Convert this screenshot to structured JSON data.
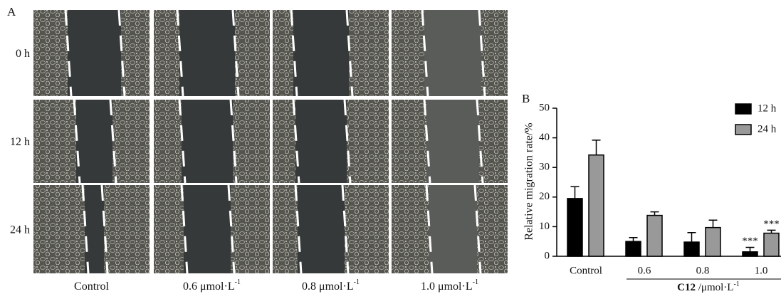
{
  "panel_a": {
    "label": "A",
    "row_labels": [
      "0 h",
      "12 h",
      "24 h"
    ],
    "column_labels": [
      {
        "text": "Control"
      },
      {
        "text": "0.6 μmol·L",
        "sup": "-1"
      },
      {
        "text": "0.8 μmol·L",
        "sup": "-1"
      },
      {
        "text": "1.0 μmol·L",
        "sup": "-1"
      }
    ]
  },
  "chart_data": {
    "type": "bar",
    "panel_label": "B",
    "ylabel": "Relative migration rate/%",
    "xlabel": {
      "bold": "C12",
      "text": " /μmol·L",
      "sup": "-1"
    },
    "categories": [
      "Control",
      "0.6",
      "0.8",
      "1.0"
    ],
    "series": [
      {
        "name": "12 h",
        "color": "#000000",
        "values": [
          19.5,
          5,
          4.8,
          1.5
        ],
        "errors": [
          4,
          1.3,
          3.2,
          1.5
        ],
        "annotations": [
          null,
          null,
          null,
          "***"
        ]
      },
      {
        "name": "24 h",
        "color": "#999999",
        "values": [
          34.2,
          13.8,
          9.7,
          7.8
        ],
        "errors": [
          5,
          1.2,
          2.5,
          1
        ],
        "annotations": [
          null,
          null,
          null,
          "***"
        ]
      }
    ],
    "ylim": [
      0,
      50
    ],
    "yticks": [
      0,
      10,
      20,
      30,
      40,
      50
    ]
  }
}
